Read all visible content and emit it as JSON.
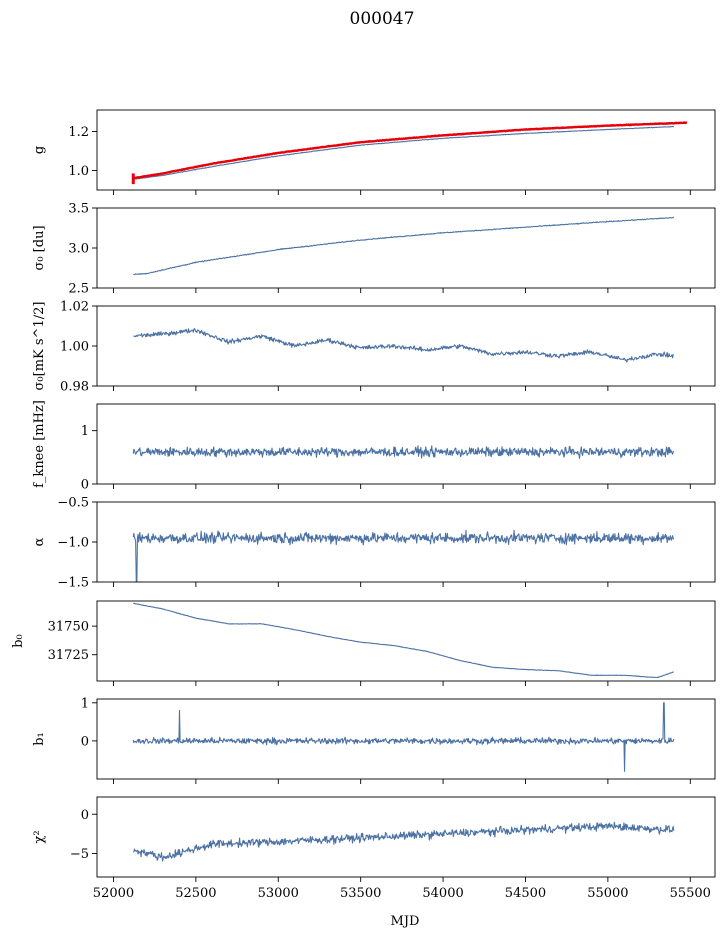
{
  "chart_data": {
    "type": "line",
    "title": "000047",
    "xlabel": "MJD",
    "xlim": [
      51900,
      55650
    ],
    "x_ticks": [
      "52000",
      "52500",
      "53000",
      "53500",
      "54000",
      "54500",
      "55000",
      "55500"
    ],
    "x_tick_values": [
      52000,
      52500,
      53000,
      53500,
      54000,
      54500,
      55000,
      55500
    ],
    "x_start": 52120,
    "x_end": 55400,
    "main_color": "#4c72a4",
    "overlay_color": "#e8000b",
    "panels": [
      {
        "name": "g",
        "ylabel": "g",
        "ylim": [
          0.9,
          1.31
        ],
        "yticks": [
          1.0,
          1.2
        ],
        "ytick_labels": [
          "1.0",
          "1.2"
        ],
        "series": [
          {
            "name": "",
            "style": "main",
            "x": [
              52120,
              52300,
              52600,
              53000,
              53500,
              54000,
              54500,
              55000,
              55400
            ],
            "y": [
              0.955,
              0.975,
              1.02,
              1.075,
              1.13,
              1.165,
              1.19,
              1.21,
              1.225
            ],
            "noise": 0.002
          },
          {
            "name": "",
            "style": "overlay",
            "x": [
              52120,
              52300,
              52600,
              53000,
              53500,
              54000,
              54500,
              55000,
              55480
            ],
            "y": [
              0.96,
              0.985,
              1.035,
              1.09,
              1.145,
              1.18,
              1.21,
              1.23,
              1.245
            ],
            "noise": 0.002,
            "spike": {
              "x": 52120,
              "y0": 0.93,
              "y1": 0.985
            }
          }
        ]
      },
      {
        "name": "sigma0-du",
        "ylabel": "σ₀ [du]",
        "ylim": [
          2.5,
          3.5
        ],
        "yticks": [
          2.5,
          3.0,
          3.5
        ],
        "ytick_labels": [
          "2.5",
          "3.0",
          "3.5"
        ],
        "series": [
          {
            "name": "",
            "style": "main",
            "x": [
              52120,
              52200,
              52500,
              53000,
              53500,
              54000,
              54500,
              55000,
              55400
            ],
            "y": [
              2.67,
              2.68,
              2.82,
              2.98,
              3.1,
              3.19,
              3.26,
              3.33,
              3.38
            ],
            "noise": 0.008
          }
        ]
      },
      {
        "name": "sigma0-mk",
        "ylabel": "σ₀[mK s^1/2]",
        "ylim": [
          0.98,
          1.02
        ],
        "yticks": [
          0.98,
          1.0,
          1.02
        ],
        "ytick_labels": [
          "0.98",
          "1.00",
          "1.02"
        ],
        "series": [
          {
            "name": "",
            "style": "main",
            "x": [
              52120,
              52300,
              52500,
              52700,
              52900,
              53100,
              53300,
              53500,
              53700,
              53900,
              54100,
              54300,
              54500,
              54700,
              54900,
              55100,
              55300,
              55400
            ],
            "y": [
              1.005,
              1.006,
              1.008,
              1.002,
              1.005,
              1.0,
              1.003,
              0.999,
              1.0,
              0.998,
              1.0,
              0.996,
              0.997,
              0.995,
              0.997,
              0.993,
              0.996,
              0.995
            ],
            "noise": 0.0016
          }
        ]
      },
      {
        "name": "fknee",
        "ylabel": "f_knee [mHz]",
        "ylim": [
          0,
          1.5
        ],
        "yticks": [
          0,
          1
        ],
        "ytick_labels": [
          "0",
          "1"
        ],
        "series": [
          {
            "name": "",
            "style": "main",
            "x": [
              52120,
              55400
            ],
            "y": [
              0.6,
              0.6
            ],
            "noise": 0.13
          }
        ]
      },
      {
        "name": "alpha",
        "ylabel": "α",
        "ylim": [
          -1.5,
          -0.5
        ],
        "yticks": [
          -1.5,
          -1.0,
          -0.5
        ],
        "ytick_labels": [
          "−1.5",
          "−1.0",
          "−0.5"
        ],
        "series": [
          {
            "name": "",
            "style": "main",
            "x": [
              52120,
              55400
            ],
            "y": [
              -0.95,
              -0.95
            ],
            "noise": 0.1,
            "dip": {
              "x": 52140,
              "y": -1.5
            }
          }
        ]
      },
      {
        "name": "b0",
        "ylabel": "b₀",
        "ylim": [
          31702,
          31772
        ],
        "yticks": [
          31725,
          31750
        ],
        "ytick_labels": [
          "31725",
          "31750"
        ],
        "series": [
          {
            "name": "",
            "style": "main",
            "x": [
              52120,
              52300,
              52500,
              52700,
              52900,
              53100,
              53300,
              53500,
              53700,
              53900,
              54100,
              54300,
              54500,
              54700,
              54900,
              55100,
              55300,
              55400
            ],
            "y": [
              31770,
              31765,
              31757,
              31752,
              31752,
              31747,
              31741,
              31736,
              31733,
              31728,
              31720,
              31714,
              31712,
              31711,
              31707,
              31707,
              31705,
              31710
            ],
            "noise": 0.3
          }
        ]
      },
      {
        "name": "b1",
        "ylabel": "b₁",
        "ylim": [
          -1.0,
          1.1
        ],
        "yticks": [
          0,
          1
        ],
        "ytick_labels": [
          "0",
          "1"
        ],
        "series": [
          {
            "name": "",
            "style": "main",
            "x": [
              52120,
              55400
            ],
            "y": [
              0,
              0
            ],
            "noise": 0.12,
            "spikes": [
              {
                "x": 52400,
                "y": 0.8
              },
              {
                "x": 55340,
                "y": 1.0
              },
              {
                "x": 55100,
                "y": -0.8
              }
            ]
          }
        ]
      },
      {
        "name": "chi2",
        "ylabel": "χ²",
        "ylim": [
          -8,
          2.2
        ],
        "yticks": [
          -5,
          0
        ],
        "ytick_labels": [
          "−5",
          "0"
        ],
        "series": [
          {
            "name": "",
            "style": "main",
            "x": [
              52120,
              52300,
              52600,
              53000,
              53500,
              54000,
              54500,
              55000,
              55400
            ],
            "y": [
              -4.5,
              -5.5,
              -3.8,
              -3.5,
              -3.0,
              -2.5,
              -2.0,
              -1.5,
              -2.0
            ],
            "noise": 0.75
          }
        ]
      }
    ]
  }
}
